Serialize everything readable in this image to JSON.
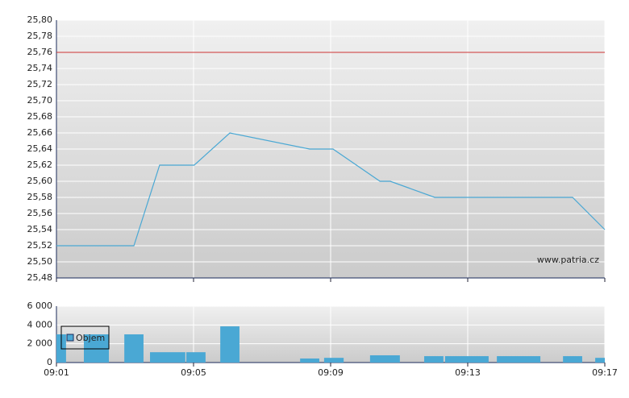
{
  "chart_data": [
    {
      "type": "line",
      "annotation": "www.patria.cz",
      "xlim": [
        541,
        557
      ],
      "xticks": [
        541,
        545,
        549,
        553,
        557
      ],
      "ylim": [
        25.48,
        25.8
      ],
      "yticks": [
        {
          "value": 25.48,
          "label": "25,48"
        },
        {
          "value": 25.5,
          "label": "25,50"
        },
        {
          "value": 25.52,
          "label": "25,52"
        },
        {
          "value": 25.54,
          "label": "25,54"
        },
        {
          "value": 25.56,
          "label": "25,56"
        },
        {
          "value": 25.58,
          "label": "25,58"
        },
        {
          "value": 25.6,
          "label": "25,60"
        },
        {
          "value": 25.62,
          "label": "25,62"
        },
        {
          "value": 25.64,
          "label": "25,64"
        },
        {
          "value": 25.66,
          "label": "25,66"
        },
        {
          "value": 25.68,
          "label": "25,68"
        },
        {
          "value": 25.7,
          "label": "25,70"
        },
        {
          "value": 25.72,
          "label": "25,72"
        },
        {
          "value": 25.74,
          "label": "25,74"
        },
        {
          "value": 25.76,
          "label": "25,76"
        },
        {
          "value": 25.78,
          "label": "25,78"
        },
        {
          "value": 25.8,
          "label": "25,80"
        }
      ],
      "grid": true,
      "reference_line": {
        "value": 25.76,
        "color": "#cc3333"
      },
      "series": [
        {
          "color": "#4aa8d4",
          "x": [
            541,
            543.26,
            544.01,
            545.02,
            546.06,
            548.39,
            549.07,
            550.44,
            550.74,
            552.04,
            556.06,
            557
          ],
          "values": [
            25.52,
            25.52,
            25.62,
            25.62,
            25.66,
            25.64,
            25.64,
            25.6,
            25.6,
            25.58,
            25.58,
            25.54
          ]
        }
      ]
    },
    {
      "type": "bar",
      "xlim": [
        541,
        557
      ],
      "xticks": [
        {
          "value": 541,
          "label": "09:01"
        },
        {
          "value": 545,
          "label": "09:05"
        },
        {
          "value": 549,
          "label": "09:09"
        },
        {
          "value": 553,
          "label": "09:13"
        },
        {
          "value": 557,
          "label": "09:17"
        }
      ],
      "ylim": [
        0,
        6000
      ],
      "yticks": [
        0,
        {
          "value": 2000,
          "label": "2 000"
        },
        {
          "value": 4000,
          "label": "4 000"
        },
        {
          "value": 6000,
          "label": "6 000"
        }
      ],
      "grid": true,
      "legend": "upper left",
      "series": [
        {
          "name": "Objem",
          "color": "#4aa8d4",
          "x_start": [
            541,
            541.8,
            542.98,
            543.73,
            544.79,
            545.78,
            548.11,
            548.81,
            550.15,
            551.73,
            552.34,
            553.85,
            555.78,
            556.72
          ],
          "x_end": [
            541.28,
            542.53,
            543.54,
            544.76,
            545.35,
            546.34,
            548.67,
            549.38,
            551.02,
            552.29,
            553.61,
            555.12,
            556.34,
            557
          ],
          "values": [
            3000,
            3000,
            3000,
            1100,
            1100,
            3850,
            430,
            500,
            770,
            680,
            680,
            680,
            680,
            500
          ]
        }
      ]
    }
  ]
}
